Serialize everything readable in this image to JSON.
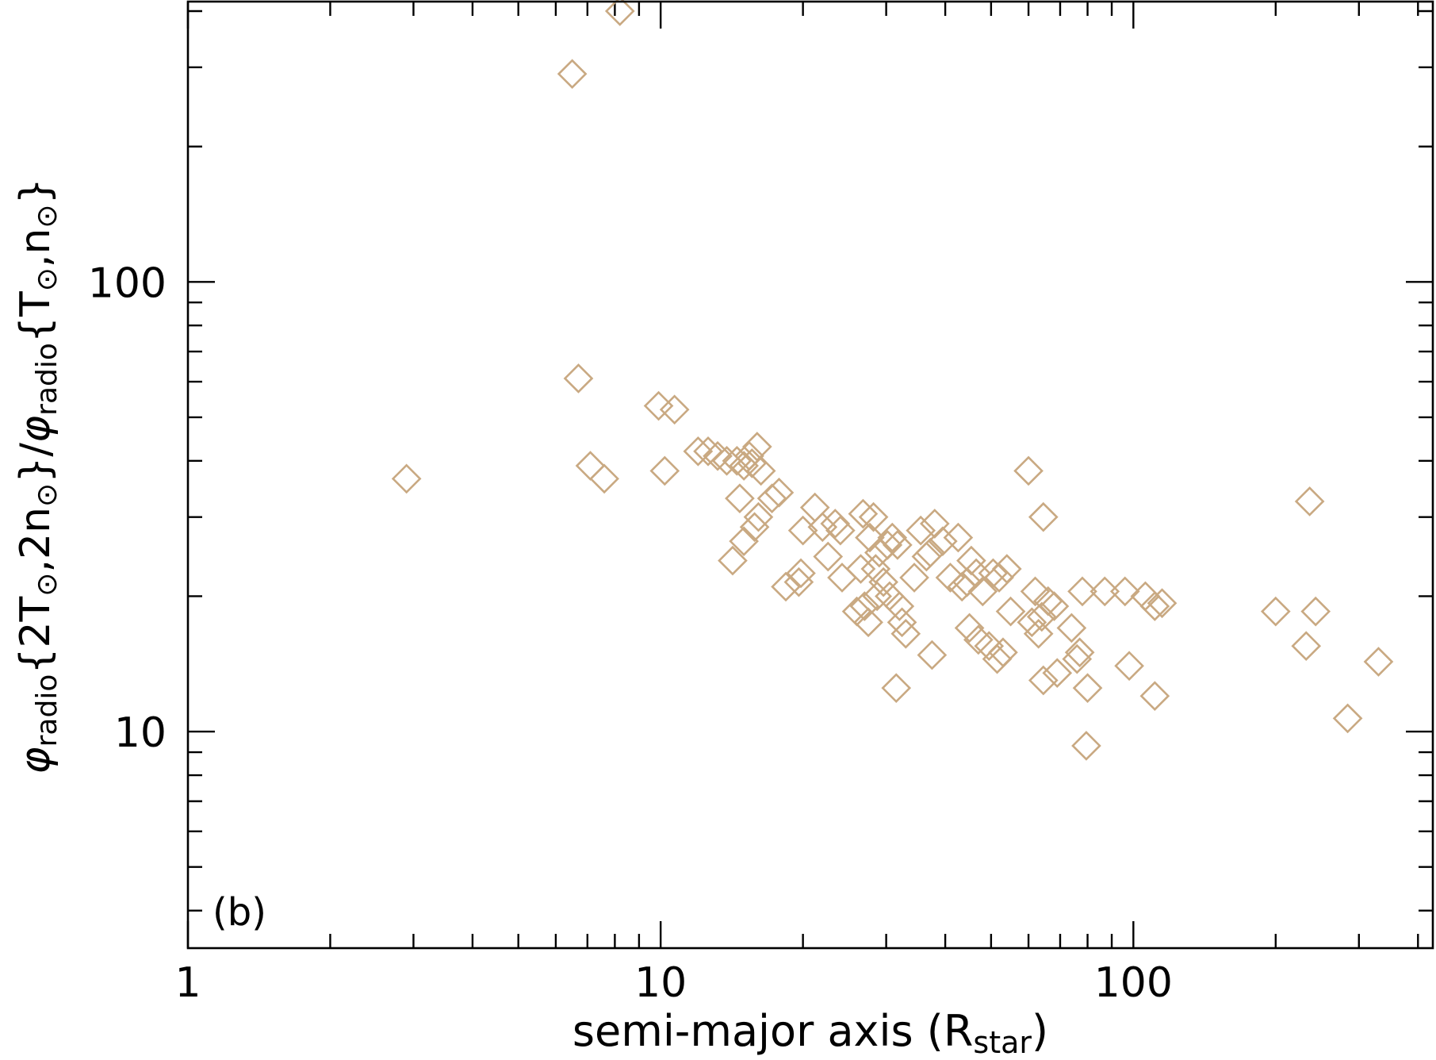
{
  "chart_data": {
    "type": "scatter",
    "panel_label": "(b)",
    "xlabel": {
      "main": "semi-major axis (R",
      "sub": "star",
      "close": ")"
    },
    "ylabel": {
      "p1": "φ",
      "p1_sub": "radio",
      "p2": "{2T",
      "p2_sub": "⊙",
      "p3": ",2n",
      "p3_sub": "⊙",
      "p4": "}/",
      "p5": "φ",
      "p5_sub": "radio",
      "p6": "{T",
      "p6_sub": "⊙",
      "p7": ",n",
      "p7_sub": "⊙",
      "p8": "}"
    },
    "x_scale": "log",
    "y_scale": "log",
    "xlim": [
      1,
      430
    ],
    "ylim": [
      3.3,
      420
    ],
    "x_major_ticks": [
      1,
      10,
      100
    ],
    "x_tick_labels": [
      "1",
      "10",
      "100"
    ],
    "y_major_ticks": [
      10,
      100
    ],
    "y_tick_labels": [
      "10",
      "100"
    ],
    "marker": "diamond-open",
    "color": "#c9a982",
    "series": [
      {
        "points": [
          [
            8.2,
            400
          ],
          [
            6.5,
            290
          ],
          [
            6.7,
            61
          ],
          [
            2.9,
            36.5
          ],
          [
            7.1,
            39
          ],
          [
            7.6,
            36.5
          ],
          [
            9.9,
            53
          ],
          [
            10.7,
            52
          ],
          [
            10.2,
            38
          ],
          [
            12.0,
            42
          ],
          [
            12.6,
            42
          ],
          [
            13.2,
            41
          ],
          [
            13.8,
            40
          ],
          [
            14.5,
            40
          ],
          [
            15.0,
            39
          ],
          [
            15.4,
            41
          ],
          [
            16.0,
            43
          ],
          [
            15.6,
            39.5
          ],
          [
            16.3,
            38
          ],
          [
            14.7,
            33
          ],
          [
            17.2,
            33
          ],
          [
            17.8,
            34
          ],
          [
            16.1,
            30
          ],
          [
            15.8,
            28.5
          ],
          [
            15.0,
            26.5
          ],
          [
            14.2,
            24
          ],
          [
            18.4,
            21
          ],
          [
            19.6,
            21.5
          ],
          [
            19.8,
            22.5
          ],
          [
            20.0,
            28
          ],
          [
            21.2,
            31.5
          ],
          [
            22.0,
            28.5
          ],
          [
            22.6,
            24.5
          ],
          [
            23.4,
            29
          ],
          [
            24.0,
            28
          ],
          [
            24.2,
            22
          ],
          [
            26.8,
            30.5
          ],
          [
            28.2,
            30
          ],
          [
            27.7,
            27
          ],
          [
            29.0,
            25
          ],
          [
            30.2,
            26
          ],
          [
            30.9,
            27
          ],
          [
            31.7,
            26
          ],
          [
            26.5,
            23
          ],
          [
            28.5,
            23
          ],
          [
            29.6,
            21.5
          ],
          [
            27.0,
            19
          ],
          [
            28.7,
            20
          ],
          [
            27.5,
            17.5
          ],
          [
            26.0,
            18.5
          ],
          [
            30.5,
            20
          ],
          [
            32.0,
            19
          ],
          [
            32.4,
            17.5
          ],
          [
            33.0,
            16.5
          ],
          [
            31.5,
            12.5
          ],
          [
            34.4,
            22
          ],
          [
            35.5,
            28
          ],
          [
            36.5,
            24.5
          ],
          [
            37.2,
            25
          ],
          [
            38.0,
            29
          ],
          [
            39.5,
            26.5
          ],
          [
            41.0,
            22
          ],
          [
            42.6,
            27
          ],
          [
            43.4,
            21
          ],
          [
            44.5,
            21.5
          ],
          [
            45.4,
            24
          ],
          [
            46.5,
            22.5
          ],
          [
            48.0,
            20.5
          ],
          [
            45.0,
            17
          ],
          [
            47.0,
            16
          ],
          [
            49.5,
            15.5
          ],
          [
            51.5,
            14.5
          ],
          [
            53.0,
            15
          ],
          [
            50.5,
            22.5
          ],
          [
            52.0,
            22
          ],
          [
            54.0,
            23
          ],
          [
            55.0,
            18.5
          ],
          [
            37.5,
            14.8
          ],
          [
            60.0,
            38
          ],
          [
            64.5,
            30
          ],
          [
            62.0,
            20.5
          ],
          [
            61.0,
            17.5
          ],
          [
            63.0,
            16.5
          ],
          [
            64.0,
            18
          ],
          [
            66.0,
            19.5
          ],
          [
            68.0,
            19
          ],
          [
            69.0,
            13.5
          ],
          [
            64.5,
            13
          ],
          [
            74.0,
            17
          ],
          [
            76.0,
            14.5
          ],
          [
            77.0,
            15
          ],
          [
            78.0,
            20.5
          ],
          [
            80.0,
            12.5
          ],
          [
            79.5,
            9.3
          ],
          [
            87.0,
            20.5
          ],
          [
            96.0,
            20.5
          ],
          [
            98.0,
            14
          ],
          [
            106.0,
            20
          ],
          [
            111.0,
            19
          ],
          [
            115.0,
            19.3
          ],
          [
            111.0,
            12
          ],
          [
            200.0,
            18.5
          ],
          [
            232.0,
            15.5
          ],
          [
            236.0,
            32.5
          ],
          [
            243.0,
            18.5
          ],
          [
            284.0,
            10.7
          ],
          [
            330.0,
            14.3
          ]
        ]
      }
    ]
  }
}
